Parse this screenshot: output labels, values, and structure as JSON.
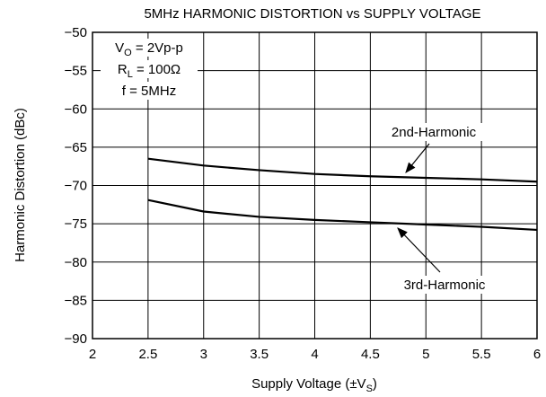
{
  "chart_data": {
    "type": "line",
    "title": "5MHz HARMONIC DISTORTION vs SUPPLY VOLTAGE",
    "x_label": {
      "main": "Supply Voltage (±V",
      "sub": "S",
      "tail": ")"
    },
    "y_label": "Harmonic Distortion (dBc)",
    "conditions": [
      {
        "main": "V",
        "sub": "O",
        "tail": " = 2Vp-p"
      },
      {
        "main": "R",
        "sub": "L",
        "tail": " = 100Ω"
      },
      {
        "main": "f = 5MHz"
      }
    ],
    "x": [
      2.5,
      3,
      3.5,
      4,
      4.5,
      5,
      5.5,
      6
    ],
    "series": [
      {
        "name": "2nd-Harmonic",
        "color": "#000000",
        "values": [
          -66.5,
          -67.4,
          -68,
          -68.5,
          -68.8,
          -69,
          -69.2,
          -69.5
        ]
      },
      {
        "name": "3rd-Harmonic",
        "color": "#000000",
        "values": [
          -71.9,
          -73.4,
          -74.1,
          -74.5,
          -74.8,
          -75.1,
          -75.4,
          -75.8
        ]
      }
    ],
    "xlim": [
      2,
      6
    ],
    "ylim": [
      -90,
      -50
    ],
    "xticks": [
      2,
      2.5,
      3,
      3.5,
      4,
      4.5,
      5,
      5.5,
      6
    ],
    "yticks": [
      {
        "value": -50,
        "label": "−50"
      },
      {
        "value": -55,
        "label": "−55"
      },
      {
        "value": -60,
        "label": "−60"
      },
      {
        "value": -65,
        "label": "−65"
      },
      {
        "value": -70,
        "label": "−70"
      },
      {
        "value": -75,
        "label": "−75"
      },
      {
        "value": -80,
        "label": "−80"
      },
      {
        "value": -85,
        "label": "−85"
      },
      {
        "value": -90,
        "label": "−90"
      }
    ],
    "grid": true
  }
}
